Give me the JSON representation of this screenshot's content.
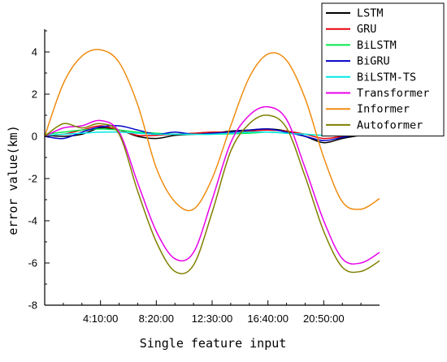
{
  "chart_data": {
    "type": "line",
    "xlabel": "Single feature input",
    "ylabel": "error value(km)",
    "x_tick_labels": [
      "4:10:00",
      "8:20:00",
      "12:30:00",
      "16:40:00",
      "20:50:00"
    ],
    "x_tick_values": [
      0.15,
      0.3,
      0.45,
      0.6,
      0.75
    ],
    "x_range": [
      0,
      0.9
    ],
    "y_ticks": [
      -8,
      -6,
      -4,
      -2,
      0,
      2,
      4
    ],
    "ylim": [
      -8,
      5
    ],
    "grid": false,
    "legend_position": "top-right",
    "series": [
      {
        "name": "LSTM",
        "color": "#000000",
        "x": [
          0.0,
          0.05,
          0.1,
          0.15,
          0.2,
          0.25,
          0.3,
          0.35,
          0.4,
          0.45,
          0.5,
          0.55,
          0.6,
          0.65,
          0.7,
          0.75,
          0.8,
          0.85,
          0.9
        ],
        "y": [
          0.05,
          0.0,
          0.1,
          0.4,
          0.3,
          0.0,
          -0.1,
          0.05,
          0.1,
          0.15,
          0.25,
          0.3,
          0.35,
          0.25,
          0.0,
          -0.3,
          -0.1,
          0.05,
          0.1
        ]
      },
      {
        "name": "GRU",
        "color": "#e8000b",
        "x": [
          0.0,
          0.05,
          0.1,
          0.15,
          0.2,
          0.25,
          0.3,
          0.35,
          0.4,
          0.45,
          0.5,
          0.55,
          0.6,
          0.65,
          0.7,
          0.75,
          0.8,
          0.85,
          0.9
        ],
        "y": [
          0.05,
          0.1,
          0.3,
          0.5,
          0.3,
          0.05,
          0.05,
          0.1,
          0.15,
          0.2,
          0.2,
          0.25,
          0.3,
          0.25,
          0.1,
          -0.1,
          0.0,
          0.1,
          0.15
        ]
      },
      {
        "name": "BiLSTM",
        "color": "#00e84a",
        "x": [
          0.0,
          0.05,
          0.1,
          0.15,
          0.2,
          0.25,
          0.3,
          0.35,
          0.4,
          0.45,
          0.5,
          0.55,
          0.6,
          0.65,
          0.7,
          0.75,
          0.8,
          0.85,
          0.9
        ],
        "y": [
          0.1,
          0.2,
          0.3,
          0.35,
          0.3,
          0.2,
          0.15,
          0.1,
          0.1,
          0.1,
          0.12,
          0.15,
          0.2,
          0.15,
          0.1,
          0.05,
          0.1,
          0.15,
          0.15
        ]
      },
      {
        "name": "BiGRU",
        "color": "#0000c8",
        "x": [
          0.0,
          0.05,
          0.1,
          0.15,
          0.2,
          0.25,
          0.3,
          0.35,
          0.4,
          0.45,
          0.5,
          0.55,
          0.6,
          0.65,
          0.7,
          0.75,
          0.8,
          0.85,
          0.9
        ],
        "y": [
          0.0,
          -0.1,
          0.2,
          0.45,
          0.5,
          0.3,
          0.1,
          0.2,
          0.1,
          0.15,
          0.2,
          0.3,
          0.35,
          0.2,
          0.0,
          -0.2,
          -0.05,
          0.1,
          0.1
        ]
      },
      {
        "name": "BiLSTM-TS",
        "color": "#00e8e8",
        "x": [
          0.0,
          0.05,
          0.1,
          0.15,
          0.2,
          0.25,
          0.3,
          0.35,
          0.4,
          0.45,
          0.5,
          0.55,
          0.6,
          0.65,
          0.7,
          0.75,
          0.8,
          0.85,
          0.9
        ],
        "y": [
          0.05,
          0.1,
          0.15,
          0.2,
          0.2,
          0.15,
          0.1,
          0.1,
          0.1,
          0.1,
          0.15,
          0.2,
          0.2,
          0.15,
          0.1,
          0.05,
          0.1,
          0.1,
          0.1
        ]
      },
      {
        "name": "Transformer",
        "color": "#e800e8",
        "x": [
          0.0,
          0.05,
          0.1,
          0.15,
          0.2,
          0.25,
          0.3,
          0.35,
          0.4,
          0.45,
          0.5,
          0.55,
          0.6,
          0.65,
          0.7,
          0.75,
          0.8,
          0.85,
          0.9
        ],
        "y": [
          0.0,
          0.4,
          0.5,
          0.75,
          0.2,
          -2.2,
          -4.5,
          -5.8,
          -5.5,
          -3.0,
          -0.3,
          1.0,
          1.4,
          0.8,
          -1.5,
          -4.0,
          -5.8,
          -6.0,
          -5.5
        ]
      },
      {
        "name": "Informer",
        "color": "#f08c10",
        "x": [
          0.0,
          0.05,
          0.1,
          0.15,
          0.2,
          0.25,
          0.3,
          0.35,
          0.4,
          0.45,
          0.5,
          0.55,
          0.6,
          0.65,
          0.7,
          0.75,
          0.8,
          0.85,
          0.9
        ],
        "y": [
          0.0,
          2.5,
          3.8,
          4.1,
          3.5,
          1.5,
          -1.5,
          -3.1,
          -3.45,
          -2.0,
          0.5,
          2.8,
          3.9,
          3.6,
          1.8,
          -1.0,
          -3.1,
          -3.45,
          -2.95
        ]
      },
      {
        "name": "Autoformer",
        "color": "#808000",
        "x": [
          0.0,
          0.05,
          0.1,
          0.15,
          0.2,
          0.25,
          0.3,
          0.35,
          0.4,
          0.45,
          0.5,
          0.55,
          0.6,
          0.65,
          0.7,
          0.75,
          0.8,
          0.85,
          0.9
        ],
        "y": [
          0.0,
          0.6,
          0.4,
          0.6,
          0.1,
          -2.6,
          -5.0,
          -6.4,
          -6.1,
          -3.6,
          -0.7,
          0.6,
          1.0,
          0.4,
          -1.9,
          -4.5,
          -6.2,
          -6.4,
          -5.9
        ]
      }
    ]
  }
}
